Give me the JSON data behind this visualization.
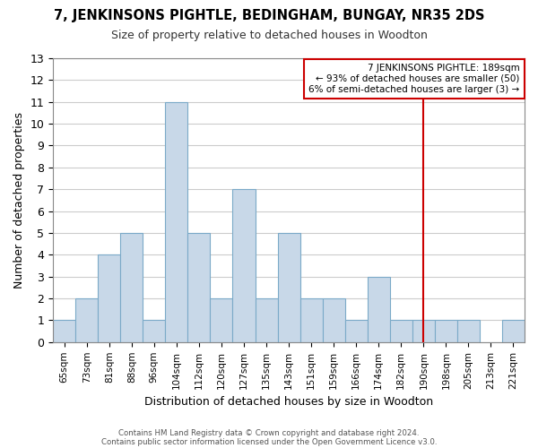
{
  "title": "7, JENKINSONS PIGHTLE, BEDINGHAM, BUNGAY, NR35 2DS",
  "subtitle": "Size of property relative to detached houses in Woodton",
  "xlabel": "Distribution of detached houses by size in Woodton",
  "ylabel": "Number of detached properties",
  "footer_lines": [
    "Contains HM Land Registry data © Crown copyright and database right 2024.",
    "Contains public sector information licensed under the Open Government Licence v3.0."
  ],
  "bin_labels": [
    "65sqm",
    "73sqm",
    "81sqm",
    "88sqm",
    "96sqm",
    "104sqm",
    "112sqm",
    "120sqm",
    "127sqm",
    "135sqm",
    "143sqm",
    "151sqm",
    "159sqm",
    "166sqm",
    "174sqm",
    "182sqm",
    "190sqm",
    "198sqm",
    "205sqm",
    "213sqm",
    "221sqm"
  ],
  "bar_heights": [
    1,
    2,
    4,
    5,
    1,
    11,
    5,
    2,
    7,
    2,
    5,
    2,
    2,
    1,
    3,
    1,
    1,
    1,
    1,
    0,
    1
  ],
  "bar_color": "#c8d8e8",
  "bar_edgecolor": "#7baac8",
  "grid_color": "#cccccc",
  "vline_x_index": 16,
  "vline_color": "#cc0000",
  "annotation_box_text": "7 JENKINSONS PIGHTLE: 189sqm\n← 93% of detached houses are smaller (50)\n6% of semi-detached houses are larger (3) →",
  "annotation_box_edgecolor": "#cc0000",
  "annotation_box_facecolor": "#ffffff",
  "ylim": [
    0,
    13
  ],
  "yticks": [
    0,
    1,
    2,
    3,
    4,
    5,
    6,
    7,
    8,
    9,
    10,
    11,
    12,
    13
  ]
}
